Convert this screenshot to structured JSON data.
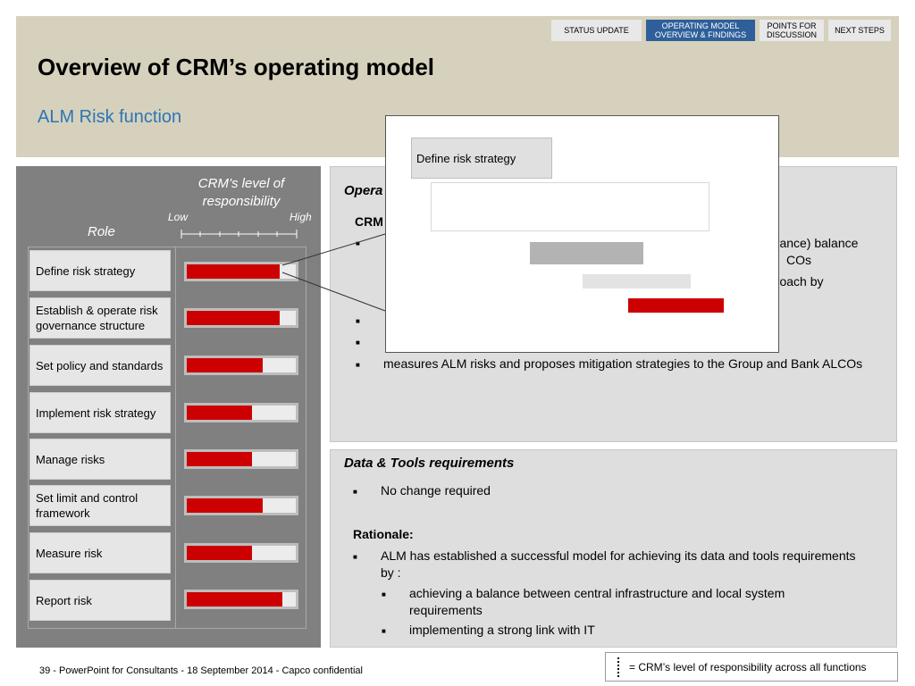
{
  "nav": {
    "tabs": [
      {
        "label": "STATUS UPDATE",
        "active": false
      },
      {
        "label": "OPERATING MODEL OVERVIEW & FINDINGS",
        "active": true
      },
      {
        "label": "POINTS FOR DISCUSSION",
        "active": false
      },
      {
        "label": "NEXT STEPS",
        "active": false
      }
    ]
  },
  "header": {
    "title": "Overview of CRM’s operating model",
    "subtitle": "ALM Risk function"
  },
  "left_panel": {
    "level_heading": "CRM’s level of responsibility",
    "low_label": "Low",
    "high_label": "High",
    "role_heading": "Role",
    "roles": [
      {
        "label": "Define risk strategy",
        "level": 0.85
      },
      {
        "label": "Establish & operate risk governance structure",
        "level": 0.85
      },
      {
        "label": "Set policy and standards",
        "level": 0.7
      },
      {
        "label": "Implement risk strategy",
        "level": 0.6
      },
      {
        "label": "Manage risks",
        "level": 0.6
      },
      {
        "label": "Set limit and control framework",
        "level": 0.7
      },
      {
        "label": "Measure risk",
        "level": 0.6
      },
      {
        "label": "Report risk",
        "level": 0.88
      }
    ]
  },
  "ops_panel": {
    "heading": "Opera",
    "crm_heading": "CRM",
    "frag1": "urance) balance",
    "frag2": "COs",
    "frag3": "proach by",
    "last_bullet": "measures ALM risks and proposes mitigation strategies to the Group and Bank ALCOs"
  },
  "data_panel": {
    "heading": "Data & Tools requirements",
    "bullet1": "No change required",
    "rationale": "Rationale:",
    "bullet2": "ALM has established a successful model for achieving its data and tools requirements by :",
    "sub1": "achieving a balance between central infrastructure and local system requirements",
    "sub2": "implementing a strong link with IT"
  },
  "popup": {
    "label": "Define risk strategy"
  },
  "footer": {
    "text": "39 - PowerPoint for Consultants - 18 September 2014 - Capco confidential"
  },
  "legend": {
    "text": "=  CRM’s level of responsibility across all functions"
  },
  "colors": {
    "accent_red": "#cc0000",
    "active_tab": "#2e5f9a",
    "header_band": "#d5d1bc",
    "subtitle_blue": "#2e75b6"
  }
}
